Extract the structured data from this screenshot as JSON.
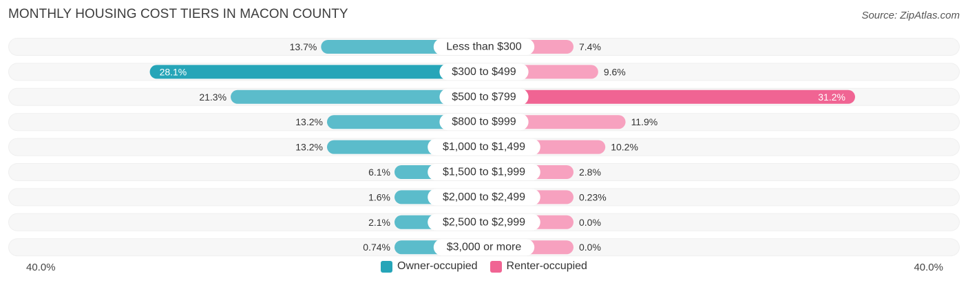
{
  "chart_data": {
    "type": "bar",
    "title": "MONTHLY HOUSING COST TIERS IN MACON COUNTY",
    "source": "Source: ZipAtlas.com",
    "categories": [
      "Less than $300",
      "$300 to $499",
      "$500 to $799",
      "$800 to $999",
      "$1,000 to $1,499",
      "$1,500 to $1,999",
      "$2,000 to $2,499",
      "$2,500 to $2,999",
      "$3,000 or more"
    ],
    "series": [
      {
        "name": "Owner-occupied",
        "values": [
          13.7,
          28.1,
          21.3,
          13.2,
          13.2,
          6.1,
          1.6,
          2.1,
          0.74
        ],
        "labels": [
          "13.7%",
          "28.1%",
          "21.3%",
          "13.2%",
          "13.2%",
          "6.1%",
          "1.6%",
          "2.1%",
          "0.74%"
        ]
      },
      {
        "name": "Renter-occupied",
        "values": [
          7.4,
          9.6,
          31.2,
          11.9,
          10.2,
          2.8,
          0.23,
          0.0,
          0.0
        ],
        "labels": [
          "7.4%",
          "9.6%",
          "31.2%",
          "11.9%",
          "10.2%",
          "2.8%",
          "0.23%",
          "0.0%",
          "0.0%"
        ]
      }
    ],
    "axis": {
      "left_label": "40.0%",
      "right_label": "40.0%",
      "max": 40.0
    },
    "legend_placement": "bottom-center",
    "colors": {
      "owner": "#5bbccb",
      "owner_strong": "#26a5b8",
      "renter": "#f7a1bf",
      "renter_strong": "#f06493",
      "track": "#efefef"
    }
  }
}
